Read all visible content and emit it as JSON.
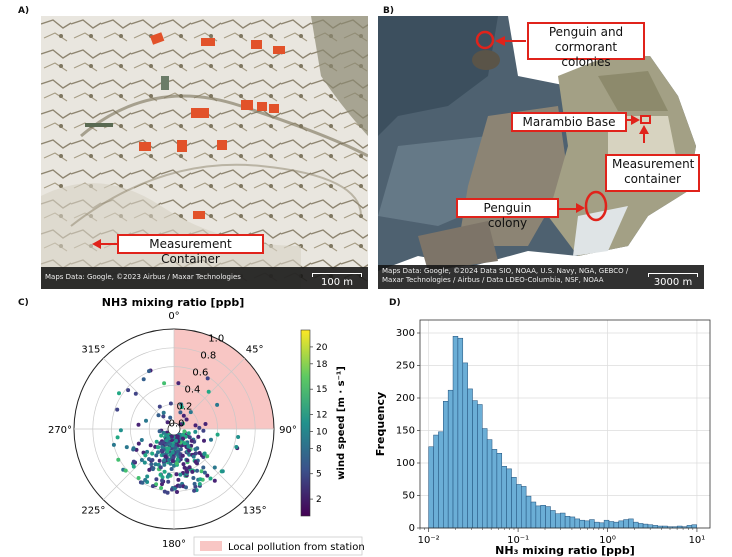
{
  "panels": {
    "a": {
      "label": "A)",
      "attribution": "Maps Data: Google, ©2023 Airbus / Maxar Technologies",
      "scale": "100 m",
      "callout": "Measurement Container"
    },
    "b": {
      "label": "B)",
      "attribution_line1": "Maps Data: Google, ©2024 Data SIO, NOAA, U.S. Navy, NGA, GEBCO /",
      "attribution_line2": "Maxar Technologies / Airbus / Data LDEO-Columbia, NSF, NOAA",
      "scale": "3000 m",
      "callouts": {
        "penguin_cormorant_line1": "Penguin and",
        "penguin_cormorant_line2": "cormorant colonies",
        "marambio": "Marambio Base",
        "container_line1": "Measurement",
        "container_line2": "container",
        "penguin_colony": "Penguin colony"
      }
    },
    "c": {
      "label": "C)"
    },
    "d": {
      "label": "D)"
    }
  },
  "chart_data": [
    {
      "type": "scatter",
      "projection": "polar",
      "title": "NH3 mixing ratio [ppb]",
      "angle_ticks": [
        "0°",
        "45°",
        "90°",
        "135°",
        "180°",
        "225°",
        "270°",
        "315°"
      ],
      "radial_ticks": [
        "0.0",
        "0.2",
        "0.4",
        "0.6",
        "0.8",
        "1.0"
      ],
      "radial_range": [
        0,
        1.0
      ],
      "colorbar": {
        "label": "wind speed [m · s⁻¹]",
        "ticks": [
          "2",
          "5",
          "8",
          "10",
          "12",
          "15",
          "18",
          "20"
        ],
        "range": [
          0,
          22
        ],
        "colormap": "viridis"
      },
      "shaded_sector": {
        "from_deg": 0,
        "to_deg": 90,
        "color": "#f8c6c4"
      },
      "legend": {
        "label": "Local pollution from station",
        "placement": "bottom"
      },
      "description_points": "dense cluster of points with NH3 0.0–0.6 ppb, concentrated between 135° and 225° wind direction, wind speed mostly 2–10 m·s⁻¹"
    },
    {
      "type": "bar",
      "subtype": "histogram",
      "xlabel": "NH₃ mixing ratio [ppb]",
      "ylabel": "Frequency",
      "xscale": "log",
      "xlim": [
        0.008,
        14
      ],
      "ylim": [
        0,
        320
      ],
      "x_ticks": [
        "10⁻²",
        "10⁻¹",
        "10⁰",
        "10¹"
      ],
      "y_ticks": [
        "0",
        "50",
        "100",
        "150",
        "200",
        "250",
        "300"
      ],
      "grid": true,
      "bar_color": "#6baed6",
      "bins_log_start": -2.0,
      "bins_log_step": 0.0545,
      "values": [
        125,
        143,
        148,
        195,
        212,
        295,
        292,
        254,
        214,
        196,
        190,
        153,
        136,
        121,
        115,
        95,
        91,
        78,
        67,
        64,
        49,
        40,
        34,
        35,
        33,
        27,
        22,
        23,
        18,
        17,
        14,
        12,
        11,
        13,
        9,
        8,
        12,
        10,
        9,
        11,
        13,
        14,
        9,
        7,
        6,
        5,
        4,
        3,
        3,
        2,
        2,
        3,
        2,
        4,
        5
      ]
    }
  ]
}
